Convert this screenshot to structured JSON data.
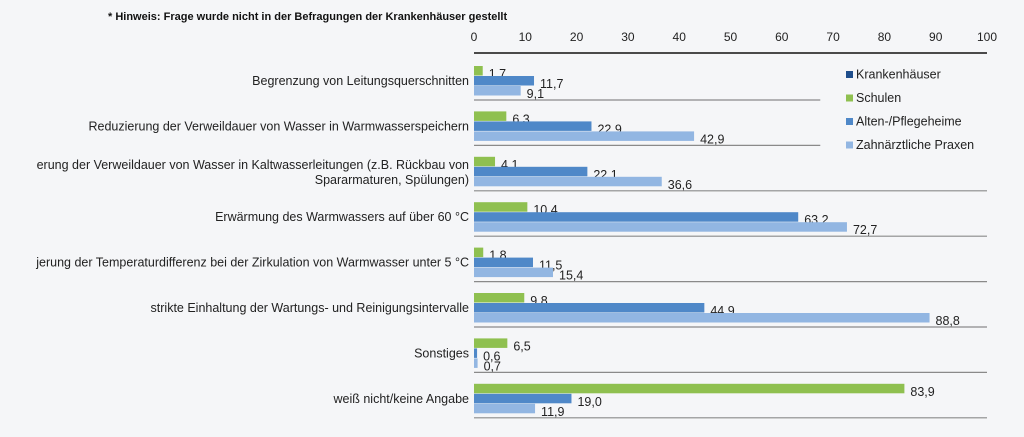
{
  "chart_data": {
    "type": "bar",
    "orientation": "horizontal",
    "note": "* Hinweis: Frage wurde nicht in der Befragungen der Krankenhäuser gestellt",
    "title": "",
    "xlabel": "",
    "ylabel": "",
    "xlim": [
      0,
      100
    ],
    "xticks": [
      "0",
      "10",
      "20",
      "30",
      "40",
      "50",
      "60",
      "70",
      "80",
      "90",
      "100"
    ],
    "xtick_values": [
      0,
      10,
      20,
      30,
      40,
      50,
      60,
      70,
      80,
      90,
      100
    ],
    "grid": false,
    "legend_position": "right",
    "categories": [
      [
        "Begrenzung von Leitungsquerschnitten"
      ],
      [
        "Reduzierung der Verweildauer von Wasser in Warmwasserspeichern"
      ],
      [
        "erung der Verweildauer von Wasser in Kaltwasserleitungen (z.B. Rückbau von",
        "Spararmaturen, Spülungen)"
      ],
      [
        "Erwärmung des Warmwassers auf über 60 °C"
      ],
      [
        "jerung der Temperaturdifferenz bei der Zirkulation von Warmwasser unter 5 °C"
      ],
      [
        "strikte Einhaltung der Wartungs- und Reinigungsintervalle"
      ],
      [
        "Sonstiges"
      ],
      [
        "weiß nicht/keine Angabe"
      ]
    ],
    "series": [
      {
        "name": "Krankenhäuser",
        "color": "#1f4e8c",
        "values": [
          null,
          null,
          null,
          null,
          null,
          null,
          null,
          null
        ],
        "labels": []
      },
      {
        "name": "Schulen",
        "color": "#8fc050",
        "values": [
          1.7,
          6.3,
          4.1,
          10.4,
          1.8,
          9.8,
          6.5,
          83.9
        ],
        "labels": [
          "1,7",
          "6,3",
          "4,1",
          "10,4",
          "1,8",
          "9,8",
          "6,5",
          "83,9"
        ]
      },
      {
        "name": "Alten-/Pflegeheime",
        "color": "#4f88c8",
        "values": [
          11.7,
          22.9,
          22.1,
          63.2,
          11.5,
          44.9,
          0.6,
          19.0
        ],
        "labels": [
          "11,7",
          "22,9",
          "22,1",
          "63,2",
          "11,5",
          "44,9",
          "0,6",
          "19,0"
        ]
      },
      {
        "name": "Zahnärztliche Praxen",
        "color": "#92b6e2",
        "values": [
          9.1,
          42.9,
          36.6,
          72.7,
          15.4,
          88.8,
          0.7,
          11.9
        ],
        "labels": [
          "9,1",
          "42,9",
          "36,6",
          "72,7",
          "15,4",
          "88,8",
          "0,7",
          "11,9"
        ]
      }
    ]
  }
}
